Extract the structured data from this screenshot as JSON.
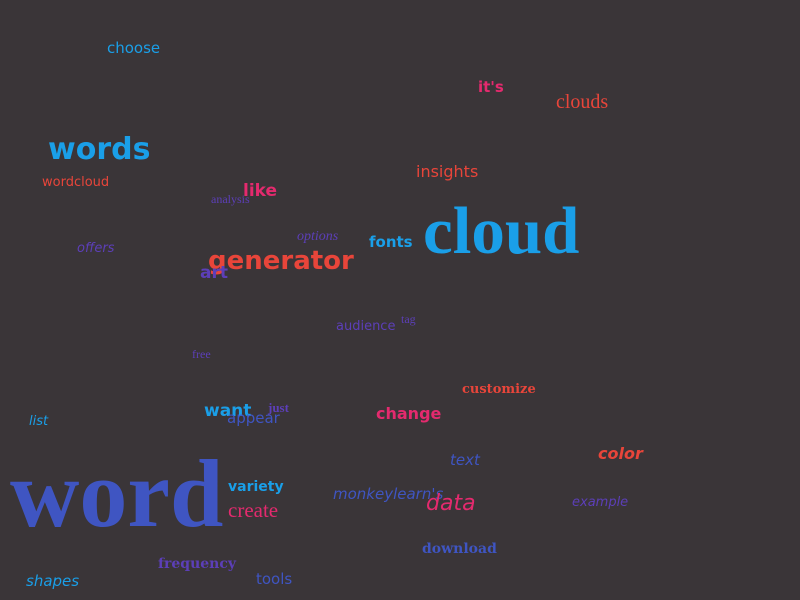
{
  "background_color": "#3a3538",
  "palette": {
    "blue": "#1a9fe8",
    "red": "#e8453a",
    "pink": "#e42a6e",
    "purple": "#5c3fb8",
    "indigo": "#3f55c2"
  },
  "words": {
    "choose": "choose",
    "its": "it's",
    "clouds": "clouds",
    "words": "words",
    "insights": "insights",
    "wordcloud": "wordcloud",
    "analysis": "analysis",
    "like": "like",
    "cloud": "cloud",
    "options": "options",
    "fonts": "fonts",
    "offers": "offers",
    "generator": "generator",
    "art": "art",
    "tag": "tag",
    "audience": "audience",
    "free": "free",
    "customize": "customize",
    "just": "just",
    "want": "want",
    "change": "change",
    "appear": "appear",
    "list": "list",
    "color": "color",
    "text": "text",
    "word": "word",
    "variety": "variety",
    "monkeylearns": "monkeylearn's",
    "data": "data",
    "example": "example",
    "create": "create",
    "download": "download",
    "frequency": "frequency",
    "tools": "tools",
    "shapes": "shapes"
  }
}
